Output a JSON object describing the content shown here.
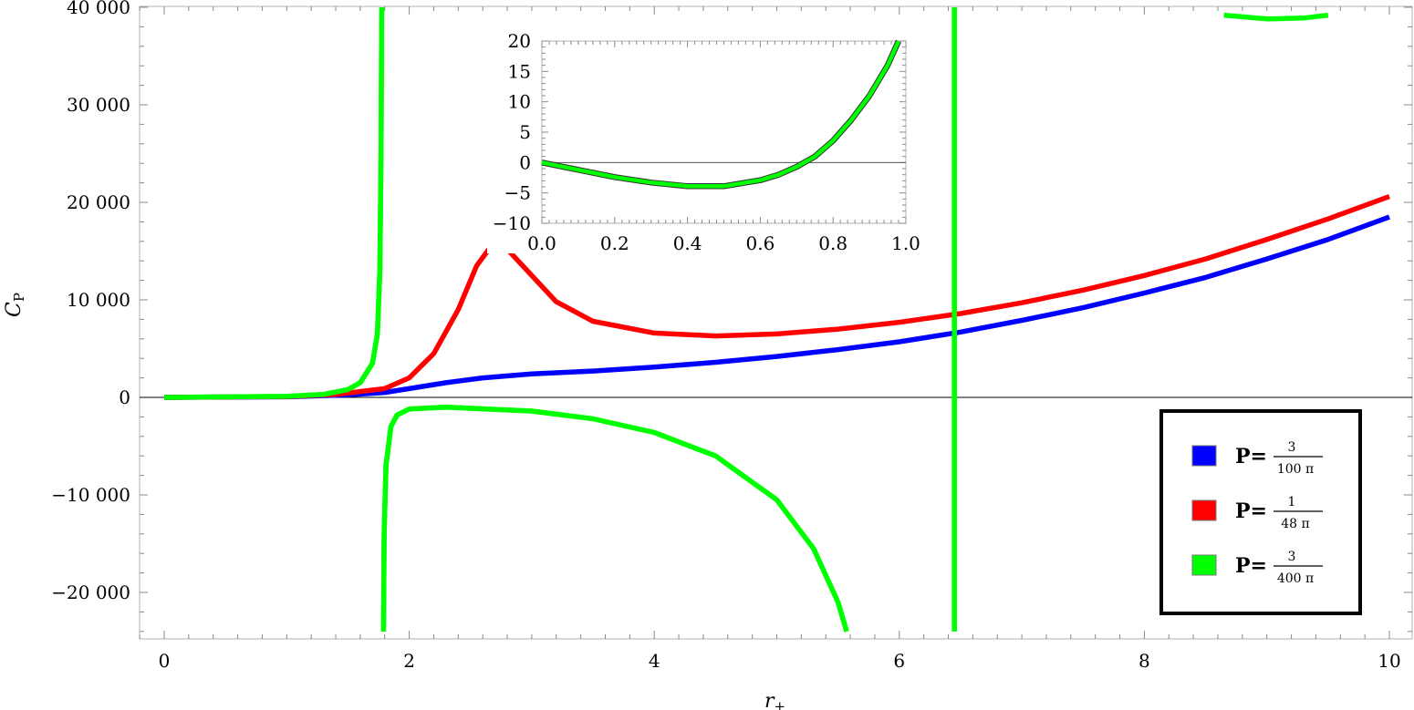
{
  "chart_data": [
    {
      "type": "line",
      "title": "",
      "xlabel": "r",
      "xlabel_subscript": "+",
      "ylabel": "C",
      "ylabel_subscript": "P",
      "xlim": [
        -0.2,
        10.2
      ],
      "ylim": [
        -24500,
        40000
      ],
      "x_ticks": [
        0,
        2,
        4,
        6,
        8,
        10
      ],
      "x_tick_labels": [
        "0",
        "2",
        "4",
        "6",
        "8",
        "10"
      ],
      "y_ticks": [
        -20000,
        -10000,
        0,
        10000,
        20000,
        30000,
        40000
      ],
      "y_tick_labels": [
        "−20 000",
        "−10 000",
        "0",
        "10 000",
        "20 000",
        "30 000",
        "40 000"
      ],
      "grid": false,
      "zero_line": true,
      "legend_placement": "bottom-right",
      "series": [
        {
          "name": "P=3/(100π)",
          "legend_prefix": "P=",
          "legend_numerator": "3",
          "legend_denominator": "100 π",
          "color": "#0000ff",
          "segments": [
            [
              [
                0,
                0
              ],
              [
                1.0,
                60
              ],
              [
                1.5,
                250
              ],
              [
                1.8,
                500
              ],
              [
                2.0,
                900
              ],
              [
                2.3,
                1500
              ],
              [
                2.6,
                2000
              ],
              [
                3.0,
                2400
              ],
              [
                3.5,
                2700
              ],
              [
                4.0,
                3100
              ],
              [
                4.5,
                3600
              ],
              [
                5.0,
                4200
              ],
              [
                5.5,
                4900
              ],
              [
                6.0,
                5700
              ],
              [
                6.5,
                6700
              ],
              [
                7.0,
                7900
              ],
              [
                7.5,
                9200
              ],
              [
                8.0,
                10700
              ],
              [
                8.5,
                12300
              ],
              [
                9.0,
                14200
              ],
              [
                9.5,
                16200
              ],
              [
                10.0,
                18500
              ]
            ]
          ]
        },
        {
          "name": "P=1/(48π)",
          "legend_prefix": "P=",
          "legend_numerator": "1",
          "legend_denominator": "48 π",
          "color": "#ff0000",
          "segments": [
            [
              [
                0,
                0
              ],
              [
                1.0,
                80
              ],
              [
                1.4,
                300
              ],
              [
                1.8,
                900
              ],
              [
                2.0,
                2000
              ],
              [
                2.2,
                4500
              ],
              [
                2.4,
                9000
              ],
              [
                2.55,
                13500
              ],
              [
                2.68,
                15700
              ],
              [
                2.8,
                15200
              ],
              [
                3.0,
                12500
              ],
              [
                3.2,
                9800
              ],
              [
                3.5,
                7800
              ],
              [
                4.0,
                6600
              ],
              [
                4.5,
                6300
              ],
              [
                5.0,
                6500
              ],
              [
                5.5,
                7000
              ],
              [
                6.0,
                7700
              ],
              [
                6.5,
                8600
              ],
              [
                7.0,
                9700
              ],
              [
                7.5,
                11000
              ],
              [
                8.0,
                12500
              ],
              [
                8.5,
                14200
              ],
              [
                9.0,
                16200
              ],
              [
                9.5,
                18300
              ],
              [
                10.0,
                20600
              ]
            ]
          ]
        },
        {
          "name": "P=3/(400π)",
          "legend_prefix": "P=",
          "legend_numerator": "3",
          "legend_denominator": "400 π",
          "color": "#00ff00",
          "segments": [
            [
              [
                0,
                0
              ],
              [
                1.0,
                100
              ],
              [
                1.3,
                300
              ],
              [
                1.5,
                800
              ],
              [
                1.6,
                1500
              ],
              [
                1.7,
                3500
              ],
              [
                1.74,
                6500
              ],
              [
                1.76,
                13000
              ],
              [
                1.77,
                25000
              ],
              [
                1.775,
                40000
              ]
            ],
            [
              [
                1.79,
                -24000
              ],
              [
                1.795,
                -14000
              ],
              [
                1.81,
                -7000
              ],
              [
                1.85,
                -3000
              ],
              [
                1.9,
                -1800
              ],
              [
                2.0,
                -1200
              ],
              [
                2.3,
                -1000
              ],
              [
                3.0,
                -1400
              ],
              [
                3.5,
                -2200
              ],
              [
                4.0,
                -3600
              ],
              [
                4.5,
                -6000
              ],
              [
                5.0,
                -10500
              ],
              [
                5.3,
                -15500
              ],
              [
                5.5,
                -21000
              ],
              [
                5.57,
                -24000
              ]
            ],
            [
              [
                6.45,
                -24000
              ],
              [
                6.45,
                40000
              ]
            ],
            [
              [
                8.65,
                39200
              ],
              [
                9.0,
                38800
              ],
              [
                9.3,
                38900
              ],
              [
                9.5,
                39200
              ]
            ]
          ]
        }
      ]
    },
    {
      "type": "line",
      "title": "",
      "xlim": [
        0.0,
        1.0
      ],
      "ylim": [
        -10,
        20
      ],
      "x_ticks": [
        0.0,
        0.2,
        0.4,
        0.6,
        0.8,
        1.0
      ],
      "x_tick_labels": [
        "0.0",
        "0.2",
        "0.4",
        "0.6",
        "0.8",
        "1.0"
      ],
      "y_ticks": [
        -10,
        -5,
        0,
        5,
        10,
        15,
        20
      ],
      "y_tick_labels": [
        "−10",
        "−5",
        "0",
        "5",
        "10",
        "15",
        "20"
      ],
      "grid": false,
      "zero_line": true,
      "series": [
        {
          "color": "#00ff00",
          "values": [
            [
              0.0,
              0
            ],
            [
              0.1,
              -1.2
            ],
            [
              0.2,
              -2.4
            ],
            [
              0.3,
              -3.3
            ],
            [
              0.4,
              -3.9
            ],
            [
              0.5,
              -3.9
            ],
            [
              0.6,
              -2.9
            ],
            [
              0.65,
              -2.0
            ],
            [
              0.7,
              -0.7
            ],
            [
              0.75,
              1.0
            ],
            [
              0.8,
              3.6
            ],
            [
              0.85,
              7.0
            ],
            [
              0.9,
              11.0
            ],
            [
              0.95,
              16.0
            ],
            [
              0.98,
              20.0
            ]
          ]
        }
      ]
    }
  ]
}
